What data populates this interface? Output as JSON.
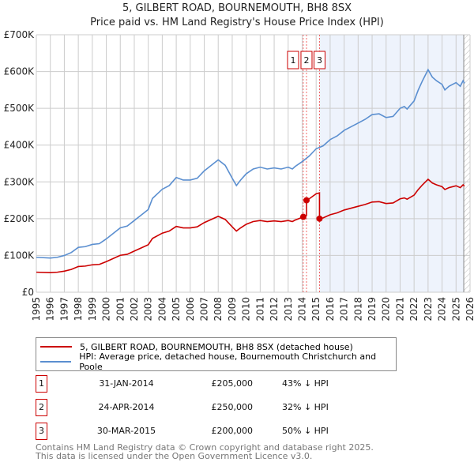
{
  "chart_data": {
    "type": "line",
    "title": "5, GILBERT ROAD, BOURNEMOUTH, BH8 8SX",
    "subtitle": "Price paid vs. HM Land Registry's House Price Index (HPI)",
    "xlim": [
      1995,
      2026
    ],
    "ylim": [
      0,
      700000
    ],
    "yticks": [
      0,
      100000,
      200000,
      300000,
      400000,
      500000,
      600000,
      700000
    ],
    "ytick_labels": [
      "£0",
      "£100K",
      "£200K",
      "£300K",
      "£400K",
      "£500K",
      "£600K",
      "£700K"
    ],
    "xtick_labels": [
      "1995",
      "1996",
      "1997",
      "1998",
      "1999",
      "2000",
      "2001",
      "2002",
      "2003",
      "2004",
      "2005",
      "2006",
      "2007",
      "2008",
      "2009",
      "2010",
      "2011",
      "2012",
      "2013",
      "2014",
      "2015",
      "2016",
      "2017",
      "2018",
      "2019",
      "2020",
      "2021",
      "2022",
      "2023",
      "2024",
      "2025",
      "2026"
    ],
    "grid": true,
    "shaded_from": 2015.24,
    "hatched_from": 2025.55,
    "series": [
      {
        "name": "5, GILBERT ROAD, BOURNEMOUTH, BH8 8SX (detached house)",
        "color": "#cc0000",
        "derived_from_hpi_and_sales": true
      },
      {
        "name": "HPI: Average price, detached house, Bournemouth Christchurch and Poole",
        "color": "#5b8fd0",
        "x": [
          1995,
          1996,
          1996.5,
          1997,
          1997.5,
          1998,
          1998.5,
          1999,
          1999.5,
          2000,
          2000.5,
          2001,
          2001.5,
          2002,
          2002.5,
          2003,
          2003.3,
          2004,
          2004.5,
          2005,
          2005.5,
          2006,
          2006.5,
          2007,
          2007.5,
          2008,
          2008.5,
          2009,
          2009.3,
          2009.6,
          2010,
          2010.5,
          2011,
          2011.5,
          2012,
          2012.5,
          2013,
          2013.3,
          2013.5,
          2014,
          2014.5,
          2015,
          2015.5,
          2016,
          2016.5,
          2017,
          2017.5,
          2018,
          2018.5,
          2019,
          2019.5,
          2020,
          2020.5,
          2021,
          2021.3,
          2021.5,
          2022,
          2022.3,
          2022.6,
          2023,
          2023.3,
          2023.6,
          2024,
          2024.2,
          2024.5,
          2025,
          2025.3,
          2025.5,
          2025.6
        ],
        "y": [
          95000,
          93000,
          95000,
          100000,
          108000,
          122000,
          124000,
          130000,
          132000,
          145000,
          160000,
          175000,
          180000,
          195000,
          210000,
          225000,
          255000,
          280000,
          290000,
          312000,
          305000,
          305000,
          310000,
          330000,
          345000,
          360000,
          345000,
          310000,
          290000,
          305000,
          322000,
          335000,
          340000,
          335000,
          338000,
          335000,
          340000,
          335000,
          342000,
          355000,
          370000,
          390000,
          398000,
          415000,
          425000,
          440000,
          450000,
          460000,
          470000,
          483000,
          485000,
          475000,
          478000,
          500000,
          505000,
          498000,
          520000,
          550000,
          575000,
          605000,
          585000,
          575000,
          565000,
          550000,
          560000,
          570000,
          560000,
          575000,
          568000
        ]
      }
    ],
    "sales": [
      {
        "num": "1",
        "date": "31-JAN-2014",
        "x": 2014.08,
        "price": "£205,000",
        "value": 205000,
        "hpi": "43% ↓ HPI"
      },
      {
        "num": "2",
        "date": "24-APR-2014",
        "x": 2014.31,
        "price": "£250,000",
        "value": 250000,
        "hpi": "32% ↓ HPI"
      },
      {
        "num": "3",
        "date": "30-MAR-2015",
        "x": 2015.24,
        "price": "£200,000",
        "value": 200000,
        "hpi": "50% ↓ HPI"
      }
    ]
  },
  "legend": {
    "red": "5, GILBERT ROAD, BOURNEMOUTH, BH8 8SX (detached house)",
    "blue": "HPI: Average price, detached house, Bournemouth Christchurch and Poole"
  },
  "footer": {
    "line1": "Contains HM Land Registry data © Crown copyright and database right 2025.",
    "line2": "This data is licensed under the Open Government Licence v3.0."
  }
}
